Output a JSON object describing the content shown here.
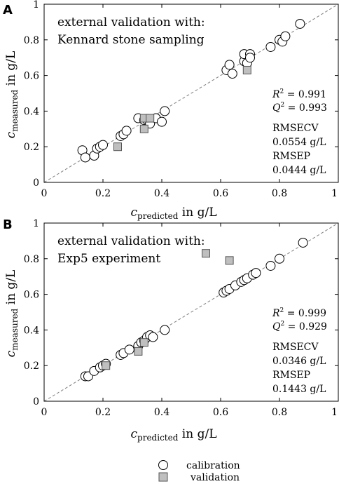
{
  "colors": {
    "axis": "#000000",
    "diagonal": "#808080",
    "calibration_fill": "#ffffff",
    "calibration_stroke": "#000000",
    "validation_fill": "#bfbfbf",
    "validation_stroke": "#555555"
  },
  "legend": {
    "calibration": "calibration",
    "validation": "validation"
  },
  "chart_data": [
    {
      "type": "scatter",
      "panel_label": "A",
      "annotation": [
        "external validation with:",
        "Kennard stone sampling"
      ],
      "xlabel": {
        "symbol": "c",
        "sub": "predicted",
        "unit": " in g/L"
      },
      "ylabel": {
        "symbol": "c",
        "sub": "measured",
        "unit": " in g/L"
      },
      "xlim": [
        0,
        1
      ],
      "ylim": [
        0,
        1
      ],
      "xticks": [
        "0",
        "0.2",
        "0.4",
        "0.6",
        "0.8",
        "1"
      ],
      "yticks": [
        "0",
        "0.2",
        "0.4",
        "0.6",
        "0.8",
        "1"
      ],
      "diagonal": true,
      "stats": {
        "R2": "= 0.991",
        "Q2": "= 0.993",
        "rmsecv_label": "RMSECV",
        "rmsecv_value": "0.0554 g/L",
        "rmsep_label": "RMSEP",
        "rmsep_value": "0.0444 g/L"
      },
      "series": [
        {
          "name": "calibration",
          "marker": "circle",
          "points": [
            [
              0.13,
              0.18
            ],
            [
              0.14,
              0.14
            ],
            [
              0.17,
              0.15
            ],
            [
              0.18,
              0.19
            ],
            [
              0.19,
              0.2
            ],
            [
              0.2,
              0.21
            ],
            [
              0.26,
              0.26
            ],
            [
              0.27,
              0.27
            ],
            [
              0.28,
              0.29
            ],
            [
              0.32,
              0.36
            ],
            [
              0.34,
              0.35
            ],
            [
              0.35,
              0.35
            ],
            [
              0.36,
              0.33
            ],
            [
              0.38,
              0.36
            ],
            [
              0.4,
              0.34
            ],
            [
              0.41,
              0.4
            ],
            [
              0.62,
              0.63
            ],
            [
              0.63,
              0.66
            ],
            [
              0.64,
              0.61
            ],
            [
              0.68,
              0.68
            ],
            [
              0.68,
              0.72
            ],
            [
              0.69,
              0.67
            ],
            [
              0.7,
              0.72
            ],
            [
              0.7,
              0.7
            ],
            [
              0.77,
              0.76
            ],
            [
              0.8,
              0.8
            ],
            [
              0.81,
              0.79
            ],
            [
              0.82,
              0.82
            ],
            [
              0.87,
              0.89
            ]
          ]
        },
        {
          "name": "validation",
          "marker": "square",
          "points": [
            [
              0.25,
              0.2
            ],
            [
              0.34,
              0.3
            ],
            [
              0.34,
              0.36
            ],
            [
              0.36,
              0.36
            ],
            [
              0.69,
              0.63
            ]
          ]
        }
      ]
    },
    {
      "type": "scatter",
      "panel_label": "B",
      "annotation": [
        "external validation with:",
        "Exp5 experiment"
      ],
      "xlabel": {
        "symbol": "c",
        "sub": "predicted",
        "unit": " in g/L"
      },
      "ylabel": {
        "symbol": "c",
        "sub": "measured",
        "unit": " in g/L"
      },
      "xlim": [
        0,
        1
      ],
      "ylim": [
        0,
        1
      ],
      "xticks": [
        "0",
        "0.2",
        "0.4",
        "0.6",
        "0.8",
        "1"
      ],
      "yticks": [
        "0",
        "0.2",
        "0.4",
        "0.6",
        "0.8",
        "1"
      ],
      "diagonal": true,
      "stats": {
        "R2": "= 0.999",
        "Q2": "= 0.929",
        "rmsecv_label": "RMSECV",
        "rmsecv_value": "0.0346 g/L",
        "rmsep_label": "RMSEP",
        "rmsep_value": "0.1443 g/L"
      },
      "series": [
        {
          "name": "calibration",
          "marker": "circle",
          "points": [
            [
              0.14,
              0.14
            ],
            [
              0.15,
              0.14
            ],
            [
              0.17,
              0.17
            ],
            [
              0.19,
              0.19
            ],
            [
              0.2,
              0.2
            ],
            [
              0.21,
              0.21
            ],
            [
              0.26,
              0.26
            ],
            [
              0.27,
              0.27
            ],
            [
              0.29,
              0.29
            ],
            [
              0.32,
              0.31
            ],
            [
              0.33,
              0.33
            ],
            [
              0.34,
              0.34
            ],
            [
              0.35,
              0.36
            ],
            [
              0.36,
              0.37
            ],
            [
              0.37,
              0.36
            ],
            [
              0.41,
              0.4
            ],
            [
              0.61,
              0.61
            ],
            [
              0.62,
              0.62
            ],
            [
              0.63,
              0.63
            ],
            [
              0.65,
              0.65
            ],
            [
              0.67,
              0.67
            ],
            [
              0.68,
              0.68
            ],
            [
              0.69,
              0.69
            ],
            [
              0.71,
              0.71
            ],
            [
              0.72,
              0.72
            ],
            [
              0.77,
              0.76
            ],
            [
              0.8,
              0.8
            ],
            [
              0.88,
              0.89
            ]
          ]
        },
        {
          "name": "validation",
          "marker": "square",
          "points": [
            [
              0.21,
              0.2
            ],
            [
              0.32,
              0.28
            ],
            [
              0.34,
              0.33
            ],
            [
              0.55,
              0.83
            ],
            [
              0.63,
              0.79
            ]
          ]
        }
      ]
    }
  ]
}
